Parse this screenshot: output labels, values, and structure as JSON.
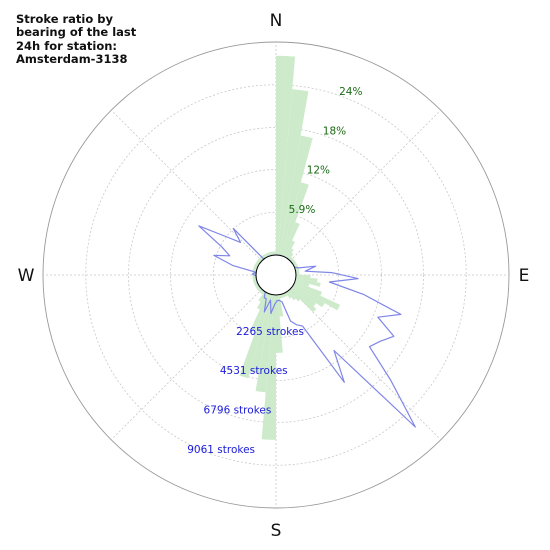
{
  "chart_data": {
    "type": "polar-rose",
    "title": "Stroke ratio by bearing of the last 24h for station: Amsterdam-3138",
    "direction_labels": [
      "N",
      "E",
      "S",
      "W"
    ],
    "ratio_scale": {
      "unit": "%",
      "max": 29.4,
      "ticks": [
        {
          "value": 5.9,
          "label": "5.9%"
        },
        {
          "value": 11.8,
          "label": "12%"
        },
        {
          "value": 17.6,
          "label": "18%"
        },
        {
          "value": 23.5,
          "label": "24%"
        }
      ],
      "color": "#cdebcb"
    },
    "count_scale": {
      "unit": "strokes",
      "max": 11326,
      "ticks": [
        {
          "value": 2265,
          "label": "2265 strokes"
        },
        {
          "value": 4531,
          "label": "4531 strokes"
        },
        {
          "value": 6796,
          "label": "6796 strokes"
        },
        {
          "value": 9061,
          "label": "9061 strokes"
        }
      ],
      "color": "#7f86e8"
    },
    "bearing_step_deg": 5,
    "series": [
      {
        "kind": "bars",
        "values": [
          27.5,
          23,
          16.8,
          10.5,
          5,
          2.5,
          1.5,
          1,
          0.5,
          0.5,
          0.5,
          0.5,
          0.5,
          0.5,
          0.5,
          0.5,
          0.5,
          0.5,
          2.0,
          3.0,
          3.5,
          2.0,
          4.0,
          7.0,
          5.0,
          4.0,
          4.5,
          2.0,
          1.5,
          1.0,
          0.5,
          0.5,
          0.5,
          0.5,
          3.0,
          8.0,
          20.0,
          13.5,
          11.0,
          12.0,
          5.5,
          2.5,
          1.5,
          0.5,
          0.5,
          0.5,
          0.5,
          0.5,
          0.5,
          0.5,
          0.5,
          0.5,
          0.5,
          0.5,
          0.5,
          0.5,
          0.5,
          0.5,
          0.5,
          0.5,
          0.5,
          0.5,
          0.5,
          0.5,
          0.5,
          0.5,
          0.5,
          0.5,
          0.5,
          0.5,
          0.5,
          0.5
        ]
      },
      {
        "kind": "line",
        "values": [
          0,
          0,
          0,
          0,
          0,
          0,
          0,
          0,
          0,
          0,
          0,
          0,
          0,
          0,
          200,
          1100,
          500,
          1900,
          3300,
          1800,
          3700,
          5900,
          4800,
          6000,
          5500,
          5200,
          7200,
          9900,
          4000,
          5700,
          2000,
          1800,
          1500,
          400,
          300,
          300,
          500,
          1000,
          300,
          1000,
          300,
          300,
          0,
          0,
          0,
          0,
          0,
          0,
          0,
          0,
          0,
          0,
          0,
          0,
          200,
          0,
          1300,
          2400,
          1600,
          2200,
          3800,
          2300,
          1500,
          2300,
          0,
          0,
          0,
          0,
          0,
          0,
          0,
          0
        ]
      }
    ]
  }
}
